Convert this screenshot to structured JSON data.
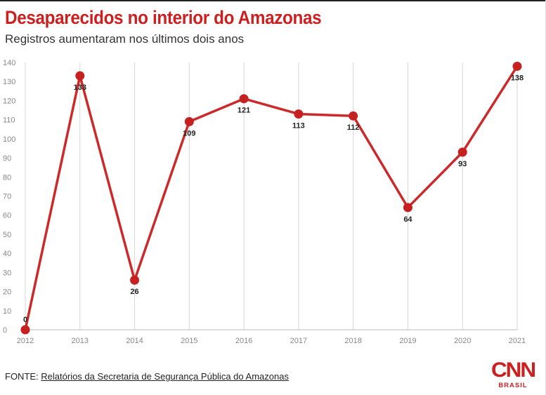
{
  "header": {
    "title": "Desaparecidos no interior do Amazonas",
    "subtitle": "Registros aumentaram nos últimos dois anos"
  },
  "footer": {
    "source_prefix": "FONTE: ",
    "source_text": "Relatórios da Secretaria de Segurança Pública do Amazonas"
  },
  "logo": {
    "main": "CNN",
    "sub": "BRASIL",
    "color": "#cc1f1f"
  },
  "colors": {
    "line": "#cc2a2a",
    "marker": "#c62020",
    "grid": "#d6d6d6"
  },
  "chart_data": {
    "type": "line",
    "categories": [
      "2012",
      "2013",
      "2014",
      "2015",
      "2016",
      "2017",
      "2018",
      "2019",
      "2020",
      "2021"
    ],
    "series": [
      {
        "values": [
          0,
          133,
          26,
          109,
          121,
          113,
          112,
          64,
          93,
          138
        ]
      }
    ],
    "ylim": [
      0,
      140
    ],
    "yticks": [
      0,
      10,
      20,
      30,
      40,
      50,
      60,
      70,
      80,
      90,
      100,
      110,
      120,
      130,
      140
    ],
    "grid": "vertical",
    "label_position": [
      "above",
      "below",
      "below",
      "below",
      "below",
      "below",
      "below",
      "below",
      "below",
      "below"
    ]
  }
}
